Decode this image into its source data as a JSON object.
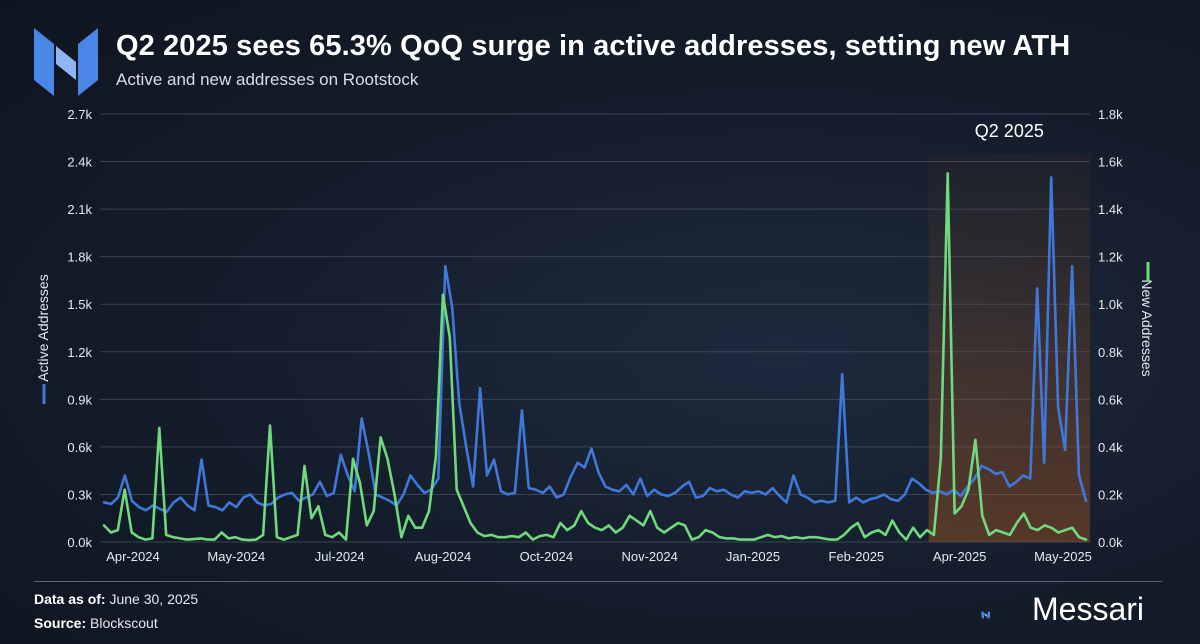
{
  "header": {
    "title": "Q2 2025 sees 65.3% QoQ surge in active addresses, setting new ATH",
    "subtitle": "Active and new addresses on Rootstock"
  },
  "footer": {
    "data_as_of_label": "Data as of:",
    "data_as_of_value": "June 30, 2025",
    "source_label": "Source:",
    "source_value": "Blockscout",
    "brand": "Messari"
  },
  "colors": {
    "active": "#3f78d9",
    "new": "#6fd97c",
    "highlight": "#c0601e",
    "grid": "#3a4352",
    "text": "#e6e9ee"
  },
  "chart_data": {
    "type": "line",
    "annotation": {
      "label": "Q2 2025",
      "x_start": "Apr-2025 (start)",
      "x_end": "Jun-2025 (end)"
    },
    "grid": true,
    "x_tick_labels": [
      "Apr-2024",
      "May-2024",
      "Jul-2024",
      "Aug-2024",
      "Oct-2024",
      "Nov-2024",
      "Jan-2025",
      "Feb-2025",
      "Apr-2025",
      "May-2025"
    ],
    "y_left": {
      "label": "Active Addresses",
      "ylim": [
        0,
        2700
      ],
      "tick_labels": [
        "0.0k",
        "0.3k",
        "0.6k",
        "0.9k",
        "1.2k",
        "1.5k",
        "1.8k",
        "2.1k",
        "2.4k",
        "2.7k"
      ]
    },
    "y_right": {
      "label": "New Addresses",
      "ylim": [
        0,
        1800
      ],
      "tick_labels": [
        "0.0k",
        "0.2k",
        "0.4k",
        "0.6k",
        "0.8k",
        "1.0k",
        "1.2k",
        "1.4k",
        "1.6k",
        "1.8k"
      ]
    },
    "series": [
      {
        "name": "Active Addresses",
        "axis": "left",
        "sample_interval": "~3 days",
        "values": [
          250,
          240,
          280,
          420,
          260,
          220,
          200,
          230,
          210,
          190,
          250,
          280,
          230,
          200,
          520,
          230,
          220,
          200,
          250,
          220,
          280,
          300,
          250,
          230,
          240,
          280,
          300,
          310,
          260,
          280,
          300,
          380,
          290,
          310,
          550,
          420,
          320,
          780,
          560,
          300,
          280,
          260,
          230,
          300,
          420,
          360,
          310,
          330,
          400,
          1740,
          1480,
          880,
          600,
          350,
          970,
          420,
          520,
          320,
          300,
          310,
          830,
          340,
          330,
          310,
          350,
          280,
          300,
          410,
          500,
          470,
          590,
          440,
          350,
          330,
          320,
          360,
          300,
          400,
          290,
          330,
          300,
          290,
          310,
          350,
          380,
          280,
          290,
          340,
          320,
          330,
          300,
          280,
          320,
          310,
          320,
          300,
          340,
          290,
          250,
          420,
          300,
          280,
          250,
          260,
          250,
          260,
          1060,
          250,
          280,
          250,
          270,
          280,
          300,
          270,
          260,
          300,
          400,
          370,
          330,
          310,
          320,
          300,
          330,
          290,
          350,
          400,
          480,
          460,
          430,
          440,
          350,
          380,
          420,
          400,
          1600,
          500,
          2300,
          850,
          580,
          1740,
          420,
          260
        ],
        "peaks_noted": [
          1740,
          2300,
          1740,
          1060
        ]
      },
      {
        "name": "New Addresses",
        "axis": "right",
        "sample_interval": "~3 days",
        "values": [
          70,
          40,
          50,
          220,
          40,
          20,
          10,
          15,
          480,
          30,
          20,
          15,
          10,
          12,
          15,
          10,
          10,
          40,
          15,
          20,
          10,
          8,
          10,
          30,
          490,
          20,
          10,
          20,
          30,
          320,
          100,
          150,
          30,
          20,
          40,
          10,
          350,
          250,
          70,
          130,
          440,
          350,
          200,
          20,
          110,
          60,
          60,
          130,
          360,
          1040,
          860,
          220,
          150,
          80,
          40,
          25,
          30,
          20,
          20,
          25,
          20,
          40,
          10,
          25,
          30,
          20,
          80,
          50,
          70,
          130,
          80,
          60,
          50,
          70,
          40,
          60,
          110,
          90,
          70,
          130,
          60,
          40,
          60,
          80,
          70,
          10,
          20,
          50,
          40,
          20,
          15,
          15,
          10,
          10,
          10,
          20,
          30,
          20,
          25,
          15,
          20,
          15,
          20,
          20,
          15,
          10,
          10,
          30,
          60,
          80,
          20,
          40,
          50,
          30,
          90,
          40,
          10,
          60,
          20,
          50,
          30,
          350,
          1550,
          120,
          150,
          220,
          430,
          110,
          30,
          50,
          40,
          30,
          80,
          120,
          60,
          50,
          70,
          60,
          40,
          50,
          60,
          20,
          10
        ]
      }
    ]
  }
}
